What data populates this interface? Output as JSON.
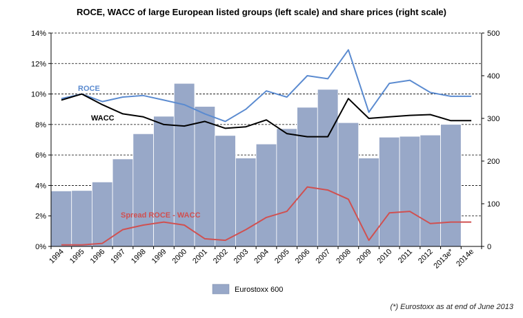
{
  "chart_data": {
    "type": "bar+line",
    "title": "ROCE, WACC of large European listed groups (left scale) and share prices (right scale)",
    "categories": [
      "1994",
      "1995",
      "1996",
      "1997",
      "1998",
      "1999",
      "2000",
      "2001",
      "2002",
      "2003",
      "2004",
      "2005",
      "2006",
      "2007",
      "2008",
      "2009",
      "2010",
      "2011",
      "2012",
      "2013e*",
      "2014e"
    ],
    "left_axis": {
      "min": 0,
      "max": 14,
      "step": 2,
      "unit": "%",
      "ticks": [
        "0%",
        "2%",
        "4%",
        "6%",
        "8%",
        "10%",
        "12%",
        "14%"
      ]
    },
    "right_axis": {
      "min": 0,
      "max": 500,
      "step": 100,
      "ticks": [
        "0",
        "100",
        "200",
        "300",
        "400",
        "500"
      ]
    },
    "bars": {
      "name": "Eurostoxx 600",
      "axis": "right",
      "color": "#98a8c8",
      "values": [
        130,
        131,
        151,
        205,
        264,
        305,
        382,
        328,
        260,
        207,
        240,
        276,
        326,
        368,
        290,
        207,
        256,
        258,
        261,
        286,
        null
      ]
    },
    "series": [
      {
        "name": "ROCE",
        "axis": "left",
        "color": "#5b8bd0",
        "values": [
          9.7,
          10.0,
          9.5,
          9.8,
          9.9,
          9.6,
          9.3,
          8.7,
          8.2,
          9.0,
          10.2,
          9.8,
          11.2,
          11.0,
          12.9,
          8.8,
          10.7,
          10.9,
          10.1,
          9.85,
          9.85
        ]
      },
      {
        "name": "WACC",
        "axis": "left",
        "color": "#000000",
        "values": [
          9.6,
          10.0,
          9.3,
          8.7,
          8.5,
          8.0,
          7.9,
          8.2,
          7.75,
          7.85,
          8.3,
          7.4,
          7.2,
          7.2,
          9.7,
          8.4,
          8.5,
          8.6,
          8.65,
          8.25,
          8.25
        ]
      },
      {
        "name": "Spread ROCE - WACC",
        "axis": "left",
        "color": "#d05050",
        "values": [
          0.1,
          0.1,
          0.2,
          1.1,
          1.4,
          1.6,
          1.4,
          0.5,
          0.4,
          1.1,
          1.9,
          2.3,
          3.9,
          3.7,
          3.1,
          0.4,
          2.2,
          2.3,
          1.5,
          1.6,
          1.6
        ]
      }
    ],
    "legend": {
      "placement": "bottom",
      "label": "Eurostoxx 600"
    },
    "grid": "horizontal dashed"
  },
  "footnote": "(*) Eurostoxx as at end of June 2013"
}
